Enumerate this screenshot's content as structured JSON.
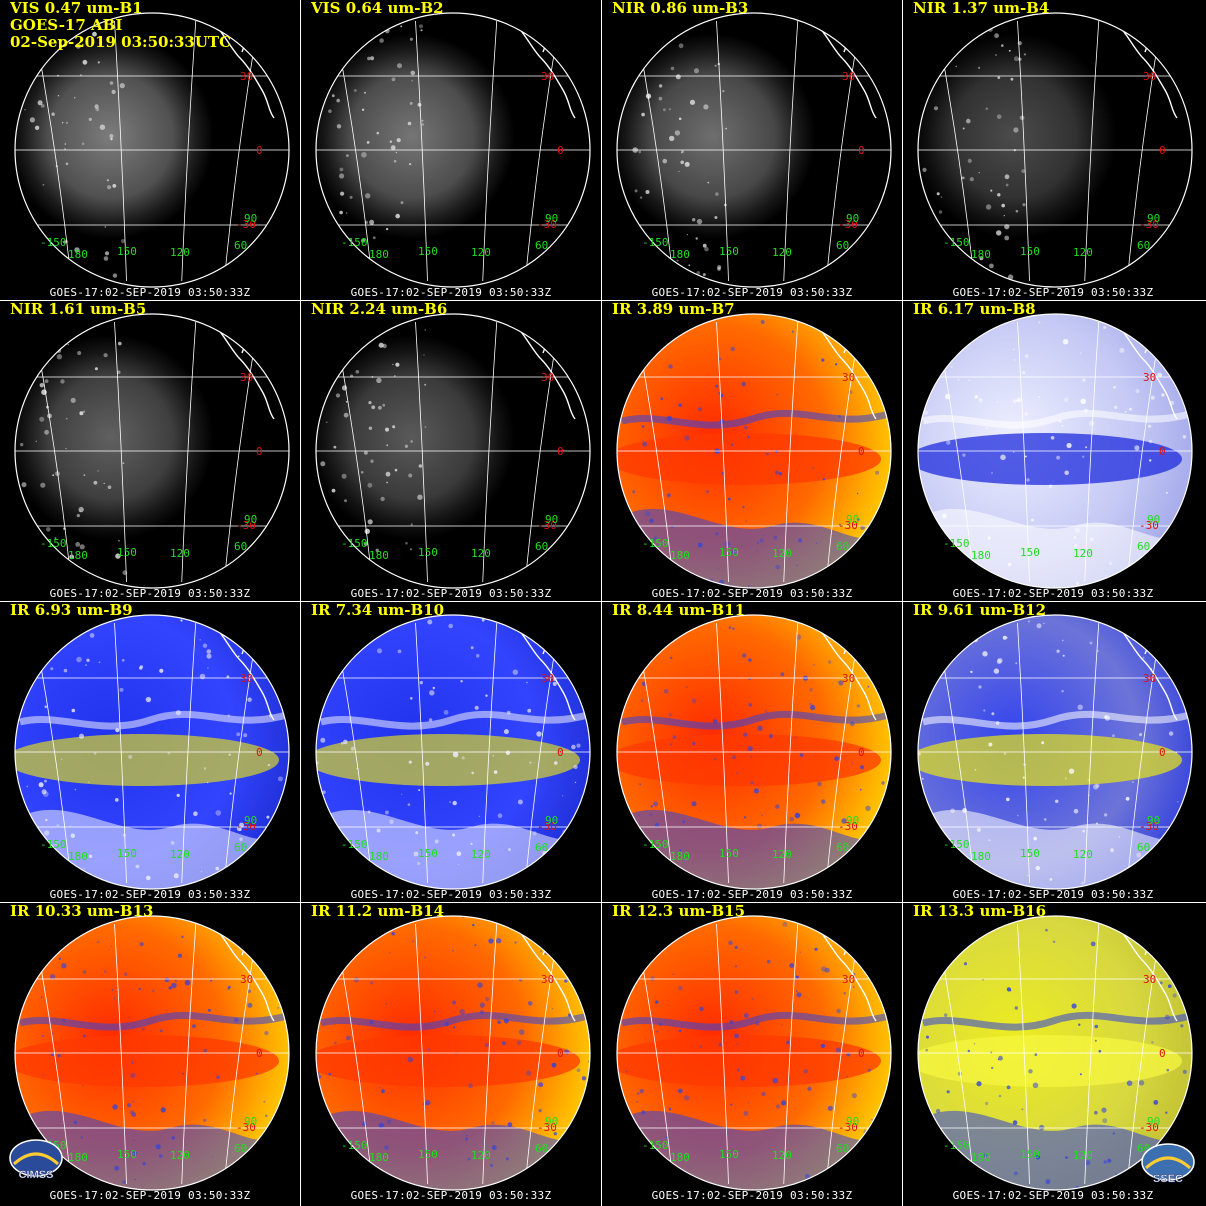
{
  "header": {
    "satellite": "GOES-17 ABI",
    "datetime": "02-Sep-2019 03:50:33UTC"
  },
  "footer_text": "GOES-17:02-SEP-2019 03:50:33Z",
  "lat_labels": [
    "30",
    "0",
    "-30"
  ],
  "lon_labels": [
    "-150",
    "180",
    "150",
    "120",
    "90",
    "60"
  ],
  "panels": [
    {
      "band": "VIS 0.47 um-B1",
      "palette": "gray",
      "brightness": 0.9
    },
    {
      "band": "VIS 0.64 um-B2",
      "palette": "gray",
      "brightness": 0.85
    },
    {
      "band": "NIR 0.86 um-B3",
      "palette": "gray",
      "brightness": 0.8
    },
    {
      "band": "NIR 1.37 um-B4",
      "palette": "gray",
      "brightness": 0.55
    },
    {
      "band": "NIR 1.61 um-B5",
      "palette": "gray",
      "brightness": 0.7
    },
    {
      "band": "NIR 2.24 um-B6",
      "palette": "gray",
      "brightness": 0.65
    },
    {
      "band": "IR 3.89 um-B7",
      "palette": "warm",
      "brightness": 1.0
    },
    {
      "band": "IR 6.17 um-B8",
      "palette": "wv_light",
      "brightness": 1.0
    },
    {
      "band": "IR 6.93 um-B9",
      "palette": "wv",
      "brightness": 1.0
    },
    {
      "band": "IR 7.34 um-B10",
      "palette": "wv",
      "brightness": 1.0
    },
    {
      "band": "IR 8.44 um-B11",
      "palette": "warm",
      "brightness": 1.0
    },
    {
      "band": "IR 9.61 um-B12",
      "palette": "ozone",
      "brightness": 1.0
    },
    {
      "band": "IR 10.33 um-B13",
      "palette": "warm",
      "brightness": 1.0
    },
    {
      "band": "IR 11.2 um-B14",
      "palette": "warm",
      "brightness": 1.0
    },
    {
      "band": "IR 12.3 um-B15",
      "palette": "warm",
      "brightness": 1.0
    },
    {
      "band": "IR 13.3 um-B16",
      "palette": "co2",
      "brightness": 1.0
    }
  ],
  "logos": {
    "left": "CIMSS",
    "right": "SSEC"
  },
  "colors": {
    "title": "#ffff00",
    "footer": "#ffffff",
    "lat_label": "#dd1111",
    "lon_label": "#22dd22",
    "grid": "#ffffff",
    "coast": "#ffffff"
  }
}
